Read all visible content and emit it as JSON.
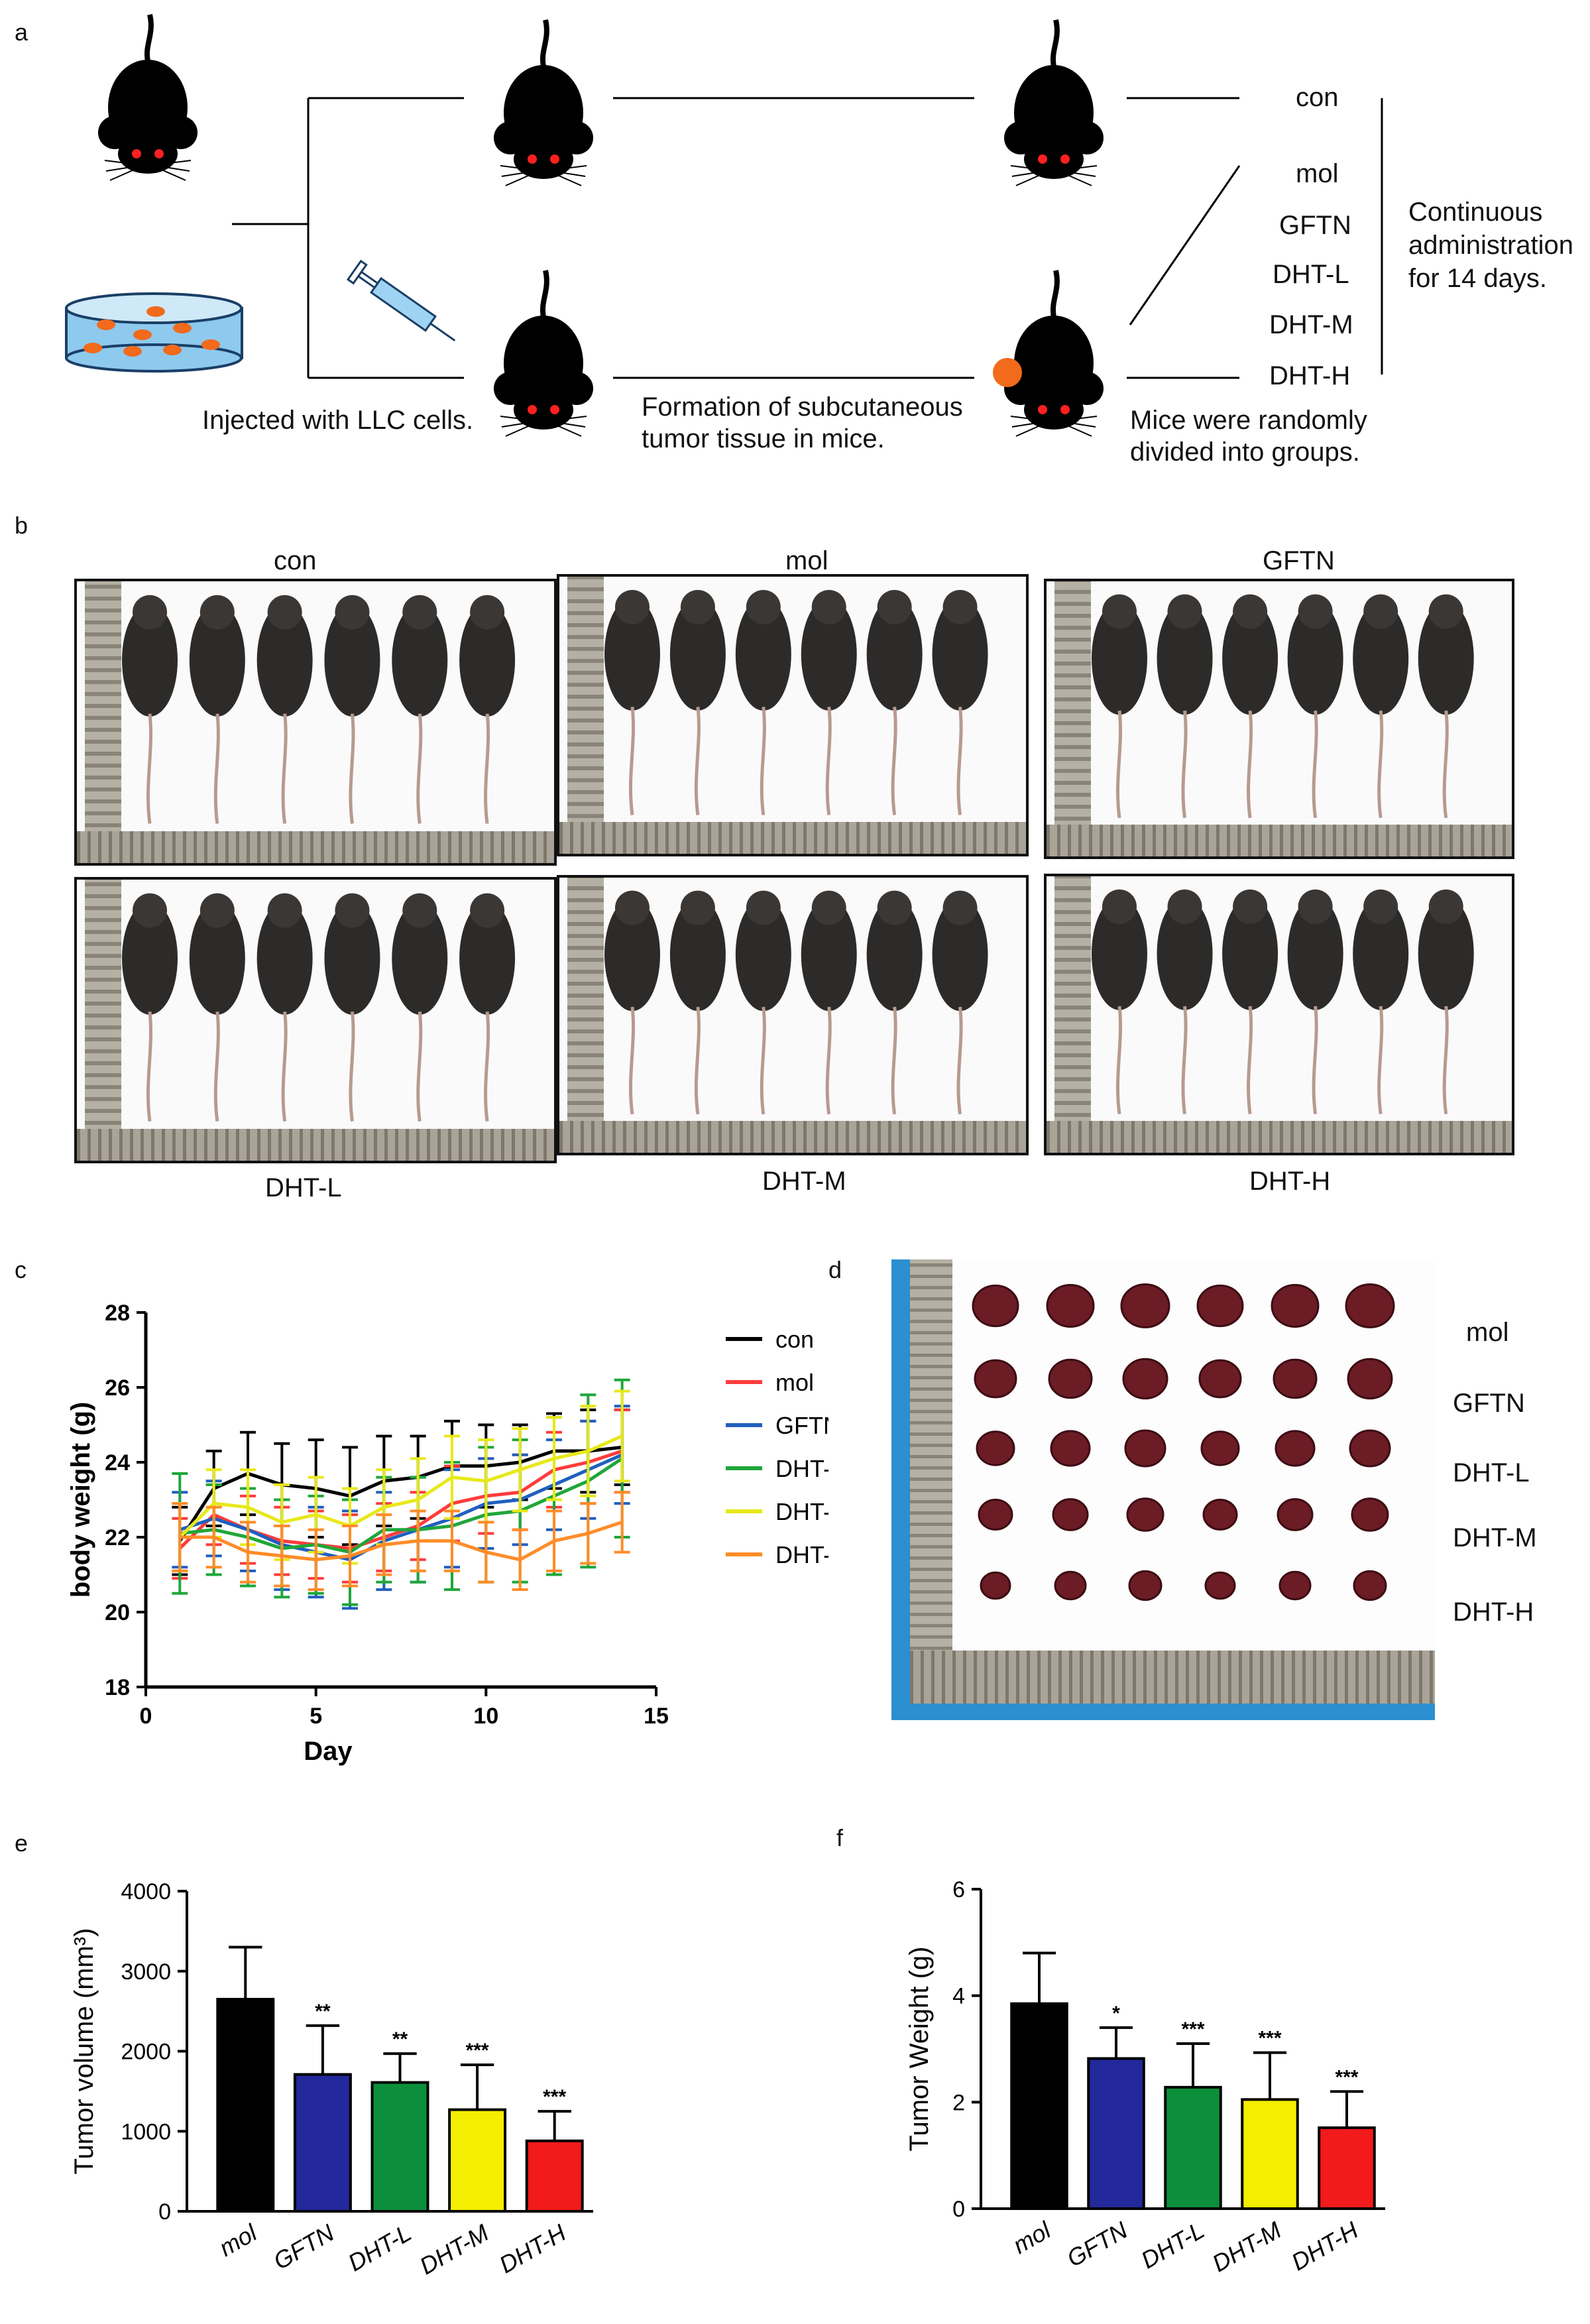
{
  "panels": {
    "a": "a",
    "b": "b",
    "c": "c",
    "d": "d",
    "e": "e",
    "f": "f"
  },
  "panel_a": {
    "step1": "Injected with LLC cells.",
    "step2_line1": "Formation of subcutaneous",
    "step2_line2": "tumor tissue in mice.",
    "step3_line1": "Mice were randomly",
    "step3_line2": "divided into groups.",
    "groups": [
      "con",
      "mol",
      "GFTN",
      "DHT-L",
      "DHT-M",
      "DHT-H"
    ],
    "admin_line1": "Continuous",
    "admin_line2": "administration",
    "admin_line3": "for 14 days."
  },
  "panel_b": {
    "top_labels": [
      "con",
      "mol",
      "GFTN"
    ],
    "bottom_labels": [
      "DHT-L",
      "DHT-M",
      "DHT-H"
    ]
  },
  "panel_d": {
    "row_labels": [
      "mol",
      "GFTN",
      "DHT-L",
      "DHT-M",
      "DHT-H"
    ]
  },
  "chart_data": [
    {
      "id": "c",
      "type": "line",
      "xlabel": "Day",
      "ylabel": "body weight (g)",
      "xlim": [
        0,
        15
      ],
      "ylim": [
        18,
        28
      ],
      "xticks": [
        0,
        5,
        10,
        15
      ],
      "yticks": [
        18,
        20,
        22,
        24,
        26,
        28
      ],
      "x": [
        1,
        2,
        3,
        4,
        5,
        6,
        7,
        8,
        9,
        10,
        11,
        12,
        13,
        14
      ],
      "series": [
        {
          "name": "con",
          "color": "#000000",
          "values": [
            21.9,
            23.3,
            23.7,
            23.4,
            23.3,
            23.1,
            23.5,
            23.6,
            23.9,
            23.9,
            24.0,
            24.3,
            24.3,
            24.4
          ],
          "err": [
            0.9,
            1.0,
            1.1,
            1.1,
            1.3,
            1.3,
            1.2,
            1.1,
            1.2,
            1.1,
            1.0,
            1.0,
            1.1,
            1.0
          ]
        },
        {
          "name": "mol",
          "color": "#ff3b3b",
          "values": [
            21.7,
            22.6,
            22.2,
            21.9,
            21.8,
            21.7,
            22.0,
            22.3,
            22.9,
            23.1,
            23.2,
            23.8,
            24.0,
            24.3
          ],
          "err": [
            0.8,
            0.8,
            0.9,
            0.9,
            0.9,
            0.9,
            0.9,
            0.9,
            1.0,
            1.0,
            1.0,
            1.0,
            1.1,
            1.1
          ]
        },
        {
          "name": "GFTN",
          "color": "#1f5fbf",
          "values": [
            22.2,
            22.5,
            22.2,
            21.8,
            21.6,
            21.4,
            21.9,
            22.2,
            22.5,
            22.9,
            23.0,
            23.4,
            23.8,
            24.2
          ],
          "err": [
            1.0,
            1.0,
            1.1,
            1.2,
            1.2,
            1.3,
            1.3,
            1.4,
            1.3,
            1.2,
            1.2,
            1.2,
            1.3,
            1.3
          ]
        },
        {
          "name": "DHT-L",
          "color": "#1fa63a",
          "values": [
            22.1,
            22.2,
            22.0,
            21.7,
            21.8,
            21.6,
            22.2,
            22.2,
            22.3,
            22.6,
            22.7,
            23.1,
            23.5,
            24.1
          ],
          "err": [
            1.6,
            1.2,
            1.3,
            1.3,
            1.3,
            1.4,
            1.4,
            1.4,
            1.7,
            1.8,
            1.9,
            2.1,
            2.3,
            2.1
          ]
        },
        {
          "name": "DHT-M",
          "color": "#e8e81a",
          "values": [
            22.0,
            22.9,
            22.8,
            22.4,
            22.6,
            22.3,
            22.8,
            23.0,
            23.6,
            23.5,
            23.8,
            24.1,
            24.3,
            24.7
          ],
          "err": [
            0.9,
            0.9,
            1.0,
            1.0,
            1.0,
            1.0,
            1.0,
            1.1,
            1.1,
            1.1,
            1.1,
            1.1,
            1.2,
            1.2
          ]
        },
        {
          "name": "DHT-H",
          "color": "#ff8c28",
          "values": [
            22.0,
            22.0,
            21.6,
            21.5,
            21.4,
            21.5,
            21.8,
            21.9,
            21.9,
            21.6,
            21.4,
            21.9,
            22.1,
            22.4
          ],
          "err": [
            0.9,
            0.8,
            0.8,
            0.8,
            0.8,
            0.8,
            0.8,
            0.8,
            0.8,
            0.8,
            0.8,
            0.8,
            0.8,
            0.8
          ]
        }
      ]
    },
    {
      "id": "e",
      "type": "bar",
      "ylabel": "Tumor  volume (mm³)",
      "categories": [
        "mol",
        "GFTN",
        "DHT-L",
        "DHT-M",
        "DHT-H"
      ],
      "values": [
        2650,
        1710,
        1610,
        1270,
        880
      ],
      "err": [
        650,
        610,
        360,
        560,
        370
      ],
      "sig": [
        "",
        "**",
        "**",
        "***",
        "***"
      ],
      "colors": [
        "#000000",
        "#23289a",
        "#0c8f3a",
        "#f4ee00",
        "#f21a1a"
      ],
      "ylim": [
        0,
        4000
      ],
      "yticks": [
        0,
        1000,
        2000,
        3000,
        4000
      ]
    },
    {
      "id": "f",
      "type": "bar",
      "ylabel": "Tumor  Weight (g)",
      "categories": [
        "mol",
        "GFTN",
        "DHT-L",
        "DHT-M",
        "DHT-H"
      ],
      "values": [
        3.85,
        2.82,
        2.28,
        2.05,
        1.52
      ],
      "err": [
        0.95,
        0.58,
        0.82,
        0.88,
        0.68
      ],
      "sig": [
        "",
        "*",
        "***",
        "***",
        "***"
      ],
      "colors": [
        "#000000",
        "#23289a",
        "#0c8f3a",
        "#f4ee00",
        "#f21a1a"
      ],
      "ylim": [
        0,
        6
      ],
      "yticks": [
        0,
        2,
        4,
        6
      ]
    }
  ]
}
